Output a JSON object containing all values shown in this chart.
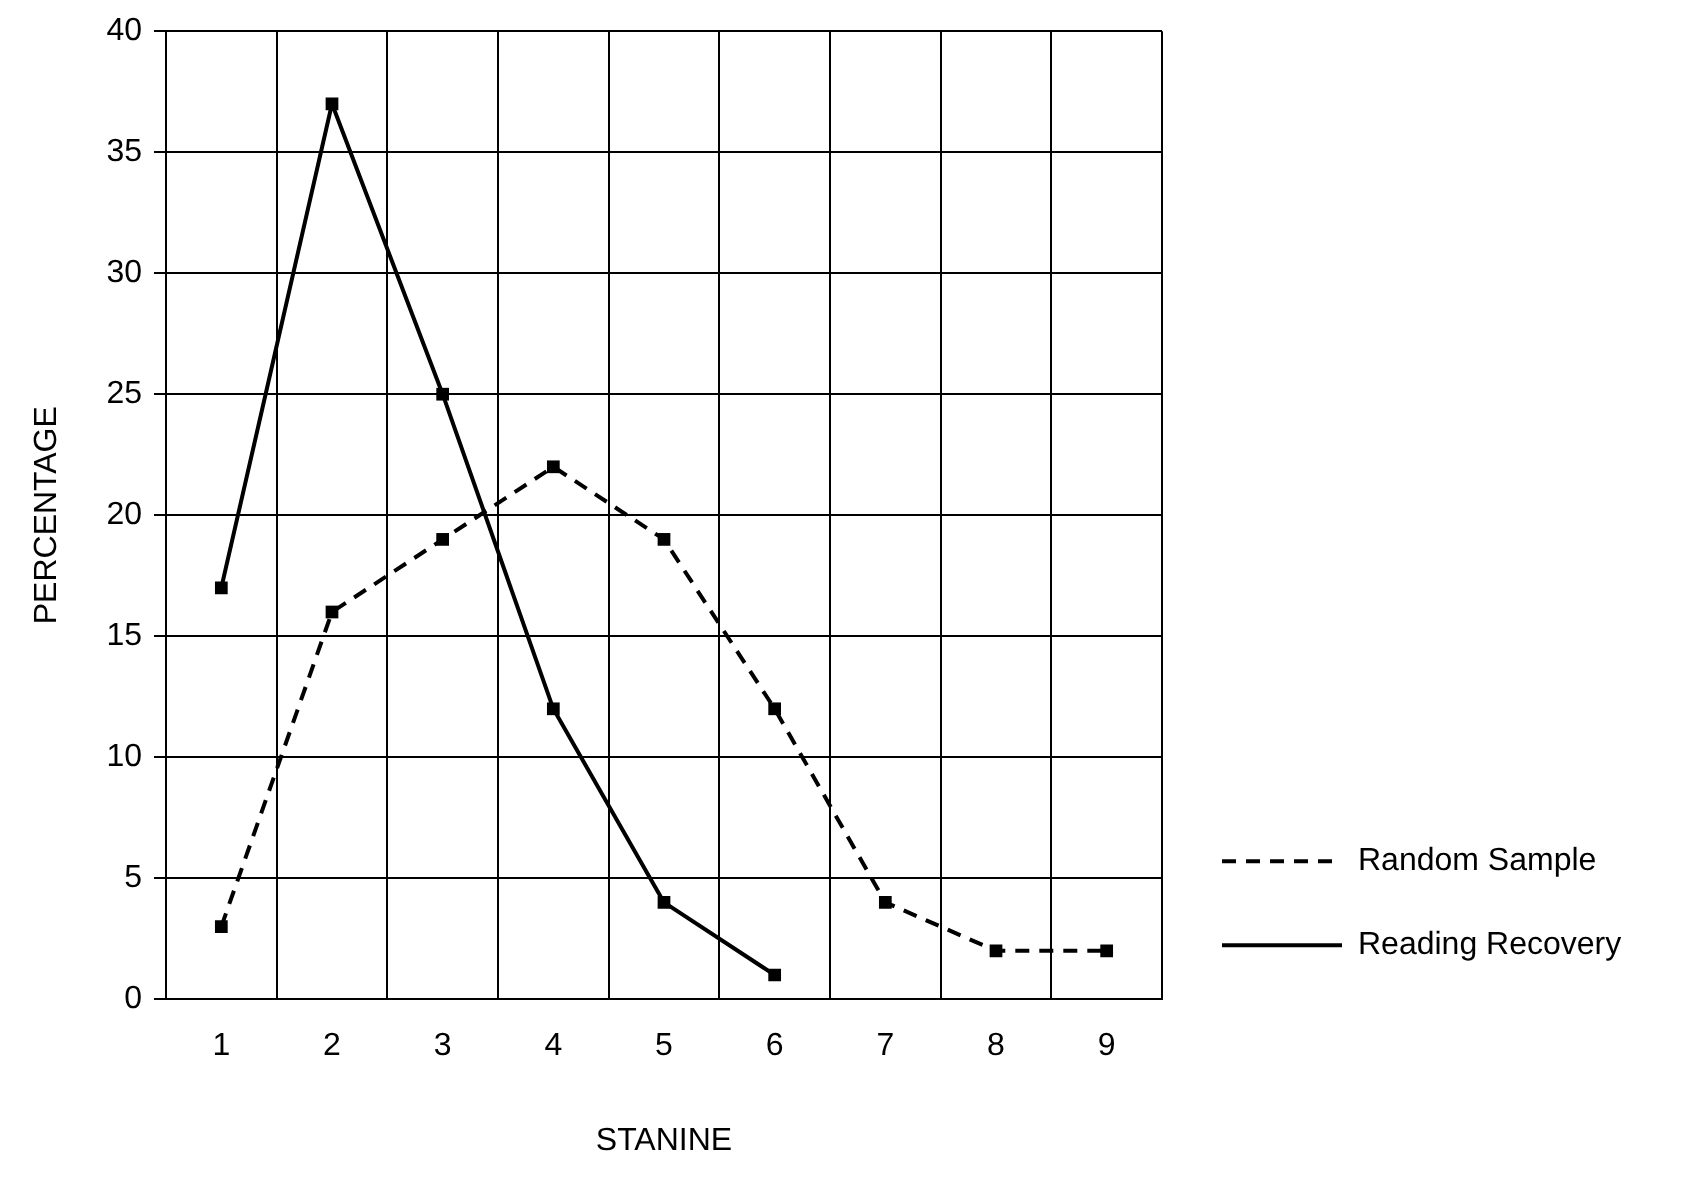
{
  "chart_data": {
    "type": "line",
    "xlabel": "STANINE",
    "ylabel": "PERCENTAGE",
    "categories": [
      "1",
      "2",
      "3",
      "4",
      "5",
      "6",
      "7",
      "8",
      "9"
    ],
    "series": [
      {
        "name": "Random Sample",
        "color": "#000000",
        "line_style": "dashed",
        "values": [
          3,
          16,
          19,
          22,
          19,
          12,
          4,
          2,
          2
        ]
      },
      {
        "name": "Reading Recovery",
        "color": "#000000",
        "line_style": "solid",
        "values": [
          17,
          37,
          25,
          12,
          4,
          1,
          null,
          null,
          null
        ]
      }
    ],
    "ylim": [
      0,
      40
    ],
    "yticks": [
      0,
      5,
      10,
      15,
      20,
      25,
      30,
      35,
      40
    ],
    "grid": true,
    "legend": "bottom right",
    "marker": "square"
  }
}
